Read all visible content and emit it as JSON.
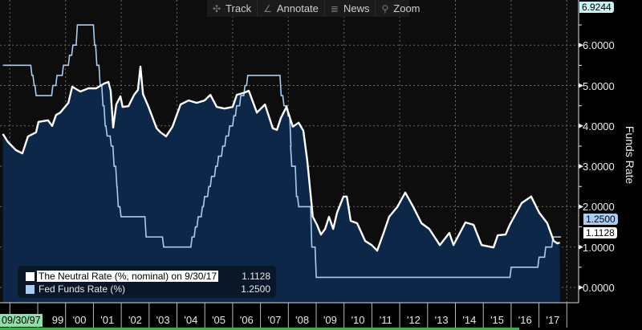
{
  "toolbar": {
    "buttons": [
      {
        "label": "Track",
        "icon": "crosshair-icon"
      },
      {
        "label": "Annotate",
        "icon": "pencil-icon"
      },
      {
        "label": "News",
        "icon": "news-icon"
      },
      {
        "label": "Zoom",
        "icon": "magnifier-icon"
      }
    ]
  },
  "chart_data": {
    "type": "line",
    "ylabel": "Funds Rate",
    "ylim": [
      -0.37,
      6.5
    ],
    "yticks": [
      "0.0000",
      "1.0000",
      "2.0000",
      "3.0000",
      "4.0000",
      "5.0000",
      "6.0000"
    ],
    "ytick_values": [
      0,
      1,
      2,
      3,
      4,
      5,
      6
    ],
    "xlim": [
      1997.75,
      2018.5
    ],
    "start_date_label": "09/30/97",
    "xtick_labels": [
      "99",
      "'00",
      "'01",
      "'02",
      "'03",
      "'04",
      "'05",
      "'06",
      "'07",
      "'08",
      "'09",
      "'10",
      "'11",
      "'12",
      "'13",
      "'14",
      "'15",
      "'16",
      "'17"
    ],
    "xtick_years": [
      1999,
      2000,
      2001,
      2002,
      2003,
      2004,
      2005,
      2006,
      2007,
      2008,
      2009,
      2010,
      2011,
      2012,
      2013,
      2014,
      2015,
      2016,
      2017
    ],
    "top_value_tag": "6.9244",
    "grid": true,
    "legend_position": "bottom-left",
    "series": [
      {
        "name": "The Neutral Rate (%, nominal) on 9/30/17",
        "last_value": "1.1128",
        "color": "#ffffff",
        "fill": "#0c2748",
        "x": [
          1997.75,
          1997.93,
          1998.22,
          1998.45,
          1998.65,
          1998.94,
          1999.03,
          1999.37,
          1999.52,
          1999.66,
          1999.81,
          2000.1,
          2000.24,
          2000.53,
          2000.82,
          2001.1,
          2001.39,
          2001.54,
          2001.62,
          2001.71,
          2001.82,
          2001.97,
          2002.05,
          2002.26,
          2002.46,
          2002.6,
          2002.69,
          2002.78,
          2002.98,
          2003.27,
          2003.41,
          2003.61,
          2003.84,
          2004.13,
          2004.42,
          2004.71,
          2004.99,
          2005.2,
          2005.43,
          2005.71,
          2006.0,
          2006.15,
          2006.44,
          2006.58,
          2006.87,
          2007.16,
          2007.44,
          2007.59,
          2007.73,
          2007.93,
          2008.16,
          2008.37,
          2008.54,
          2008.68,
          2008.88,
          2009.03,
          2009.17,
          2009.32,
          2009.46,
          2009.61,
          2009.75,
          2009.98,
          2010.1,
          2010.24,
          2010.47,
          2010.76,
          2010.99,
          2011.19,
          2011.42,
          2011.62,
          2011.91,
          2012.2,
          2012.49,
          2012.78,
          2013.06,
          2013.44,
          2013.78,
          2013.93,
          2014.36,
          2014.65,
          2014.94,
          2015.37,
          2015.52,
          2015.8,
          2015.95,
          2016.38,
          2016.72,
          2017.01,
          2017.3,
          2017.53,
          2017.67,
          2017.75
        ],
        "y": [
          3.8,
          3.6,
          3.4,
          3.32,
          3.74,
          3.84,
          4.1,
          4.14,
          4.0,
          4.27,
          4.33,
          4.57,
          4.97,
          4.85,
          4.93,
          4.93,
          5.05,
          5.09,
          4.87,
          3.96,
          4.53,
          4.73,
          4.47,
          4.49,
          4.77,
          4.89,
          5.47,
          4.79,
          4.47,
          3.94,
          3.84,
          3.74,
          3.98,
          4.53,
          4.63,
          4.57,
          4.63,
          4.77,
          4.47,
          4.43,
          4.47,
          4.77,
          4.83,
          4.87,
          4.33,
          4.53,
          3.94,
          3.9,
          4.19,
          4.47,
          3.98,
          4.08,
          3.88,
          3.14,
          1.75,
          1.55,
          1.31,
          1.45,
          1.75,
          1.45,
          1.85,
          2.25,
          2.25,
          1.65,
          1.59,
          1.15,
          1.05,
          0.91,
          1.35,
          1.75,
          1.99,
          2.35,
          1.99,
          1.59,
          1.45,
          1.05,
          1.35,
          1.05,
          1.61,
          1.55,
          1.05,
          0.99,
          1.29,
          1.31,
          1.55,
          2.09,
          2.25,
          1.85,
          1.59,
          1.15,
          1.09,
          1.1128
        ]
      },
      {
        "name": "Fed Funds Rate (%)",
        "last_value": "1.2500",
        "color": "#a9cdf0",
        "step": true,
        "x": [
          1997.75,
          1998.75,
          1998.83,
          1998.9,
          1999.5,
          1999.65,
          1999.88,
          2000.1,
          2000.22,
          2000.38,
          2001.0,
          2001.08,
          2001.2,
          2001.3,
          2001.38,
          2001.45,
          2001.6,
          2001.7,
          2001.8,
          2001.85,
          2001.95,
          2002.85,
          2003.48,
          2004.5,
          2004.62,
          2004.72,
          2004.87,
          2004.95,
          2005.1,
          2005.2,
          2005.35,
          2005.45,
          2005.6,
          2005.72,
          2005.85,
          2006.0,
          2006.1,
          2006.25,
          2006.4,
          2006.5,
          2007.7,
          2007.8,
          2007.95,
          2008.05,
          2008.08,
          2008.25,
          2008.33,
          2008.8,
          2008.96,
          2015.96,
          2016.96,
          2017.2,
          2017.46,
          2017.75
        ],
        "y": [
          5.5,
          5.25,
          5.0,
          4.75,
          5.0,
          5.25,
          5.5,
          5.75,
          6.0,
          6.5,
          6.0,
          5.5,
          5.0,
          4.5,
          4.0,
          3.75,
          3.5,
          3.0,
          2.5,
          2.0,
          1.75,
          1.25,
          1.0,
          1.25,
          1.5,
          1.75,
          2.0,
          2.25,
          2.5,
          2.75,
          3.0,
          3.25,
          3.5,
          3.75,
          4.0,
          4.25,
          4.5,
          4.75,
          5.0,
          5.25,
          4.75,
          4.5,
          4.25,
          3.5,
          3.0,
          2.25,
          2.0,
          1.0,
          0.25,
          0.5,
          0.75,
          1.0,
          1.25,
          1.25
        ]
      }
    ]
  }
}
